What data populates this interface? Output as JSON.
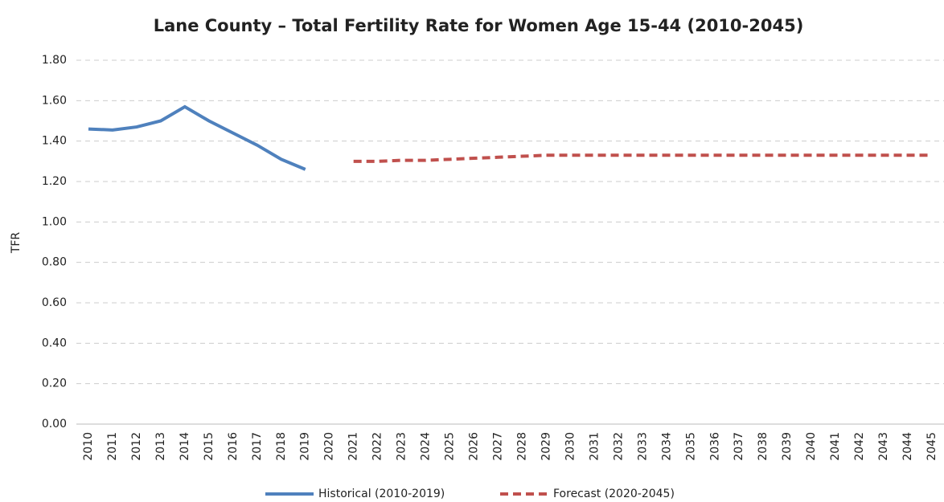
{
  "chart_data": {
    "type": "line",
    "title": "Lane County – Total Fertility Rate for Women Age 15-44 (2010-2045)",
    "y_label": "TFR",
    "categories": [
      "2010",
      "2011",
      "2012",
      "2013",
      "2014",
      "2015",
      "2016",
      "2017",
      "2018",
      "2019",
      "2020",
      "2021",
      "2022",
      "2023",
      "2024",
      "2025",
      "2026",
      "2027",
      "2028",
      "2029",
      "2030",
      "2031",
      "2032",
      "2033",
      "2034",
      "2035",
      "2036",
      "2037",
      "2038",
      "2039",
      "2040",
      "2041",
      "2042",
      "2043",
      "2044",
      "2045"
    ],
    "series": [
      {
        "name": "Historical (2010-2019)",
        "color": "#4f81bd",
        "dashed": false,
        "values": [
          1.46,
          1.455,
          1.47,
          1.5,
          1.57,
          1.5,
          1.44,
          1.38,
          1.31,
          1.26,
          null,
          null,
          null,
          null,
          null,
          null,
          null,
          null,
          null,
          null,
          null,
          null,
          null,
          null,
          null,
          null,
          null,
          null,
          null,
          null,
          null,
          null,
          null,
          null,
          null,
          null
        ]
      },
      {
        "name": "Forecast (2020-2045)",
        "color": "#c0504d",
        "dashed": true,
        "values": [
          null,
          null,
          null,
          null,
          null,
          null,
          null,
          null,
          null,
          null,
          null,
          1.3,
          1.3,
          1.305,
          1.305,
          1.31,
          1.315,
          1.32,
          1.325,
          1.33,
          1.33,
          1.33,
          1.33,
          1.33,
          1.33,
          1.33,
          1.33,
          1.33,
          1.33,
          1.33,
          1.33,
          1.33,
          1.33,
          1.33,
          1.33,
          1.33
        ]
      }
    ],
    "ylim": [
      0,
      1.8
    ],
    "yticks": [
      {
        "value": 0,
        "label": "0.00"
      },
      {
        "value": 0.2,
        "label": "0.20"
      },
      {
        "value": 0.4,
        "label": "0.40"
      },
      {
        "value": 0.6,
        "label": "0.60"
      },
      {
        "value": 0.8,
        "label": "0.80"
      },
      {
        "value": 1,
        "label": "1.00"
      },
      {
        "value": 1.2,
        "label": "1.20"
      },
      {
        "value": 1.4,
        "label": "1.40"
      },
      {
        "value": 1.6,
        "label": "1.60"
      },
      {
        "value": 1.8,
        "label": "1.80"
      }
    ],
    "grid": true,
    "legend": "bottom"
  }
}
